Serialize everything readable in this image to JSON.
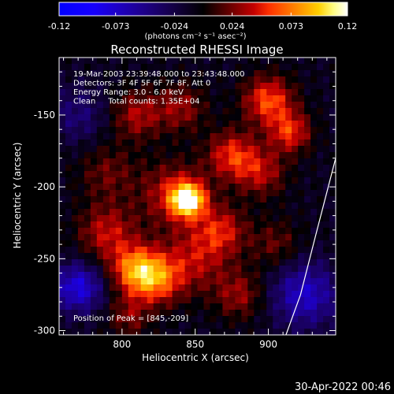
{
  "chart_data": {
    "type": "heatmap",
    "title": "Reconstructed RHESSI Image",
    "xlabel": "Heliocentric X (arcsec)",
    "ylabel": "Heliocentric Y (arcsec)",
    "xlim": [
      757,
      946
    ],
    "ylim": [
      -303,
      -110
    ],
    "x_ticks": [
      800,
      850,
      900
    ],
    "y_ticks": [
      -150,
      -200,
      -250,
      -300
    ],
    "colorbar": {
      "min": -0.12,
      "max": 0.12,
      "ticks": [
        "-0.12",
        "-0.073",
        "-0.024",
        "0.024",
        "0.073",
        "0.12"
      ],
      "units": "(photons cm⁻² s⁻¹ asec⁻²)"
    },
    "info_lines": [
      "19-Mar-2003 23:39:48.000 to 23:43:48.000",
      "Detectors: 3F 4F 5F 6F 7F 8F, Att 0",
      "Energy Range: 3.0 - 6.0 keV",
      "Clean     Total counts: 1.35E+04"
    ],
    "peak_label": "Position of Peak = [845,-209]",
    "peak": [
      845,
      -209
    ],
    "sources": [
      {
        "x": 845,
        "y": -209,
        "amp": 0.12,
        "sigma": 8
      },
      {
        "x": 835,
        "y": -205,
        "amp": 0.05,
        "sigma": 16
      },
      {
        "x": 810,
        "y": -258,
        "amp": 0.085,
        "sigma": 12
      },
      {
        "x": 825,
        "y": -265,
        "amp": 0.06,
        "sigma": 12
      },
      {
        "x": 790,
        "y": -232,
        "amp": 0.05,
        "sigma": 14
      },
      {
        "x": 868,
        "y": -230,
        "amp": 0.05,
        "sigma": 12
      },
      {
        "x": 850,
        "y": -250,
        "amp": 0.045,
        "sigma": 16
      },
      {
        "x": 900,
        "y": -140,
        "amp": 0.07,
        "sigma": 12
      },
      {
        "x": 915,
        "y": -162,
        "amp": 0.06,
        "sigma": 10
      },
      {
        "x": 875,
        "y": -178,
        "amp": 0.06,
        "sigma": 12
      },
      {
        "x": 895,
        "y": -190,
        "amp": 0.045,
        "sigma": 12
      },
      {
        "x": 810,
        "y": -150,
        "amp": 0.045,
        "sigma": 12
      },
      {
        "x": 840,
        "y": -145,
        "amp": 0.04,
        "sigma": 12
      },
      {
        "x": 790,
        "y": -190,
        "amp": 0.03,
        "sigma": 14
      },
      {
        "x": 880,
        "y": -275,
        "amp": 0.04,
        "sigma": 12
      },
      {
        "x": 805,
        "y": -290,
        "amp": 0.035,
        "sigma": 10
      },
      {
        "x": 905,
        "y": -240,
        "amp": 0.03,
        "sigma": 12
      },
      {
        "x": 770,
        "y": -270,
        "amp": -0.07,
        "sigma": 12
      },
      {
        "x": 925,
        "y": -275,
        "amp": -0.06,
        "sigma": 16
      },
      {
        "x": 770,
        "y": -150,
        "amp": -0.03,
        "sigma": 14
      }
    ],
    "limb": [
      [
        946,
        -180
      ],
      [
        932,
        -235
      ],
      [
        922,
        -275
      ],
      [
        912,
        -303
      ]
    ],
    "timestamp": "30-Apr-2022 00:46"
  }
}
